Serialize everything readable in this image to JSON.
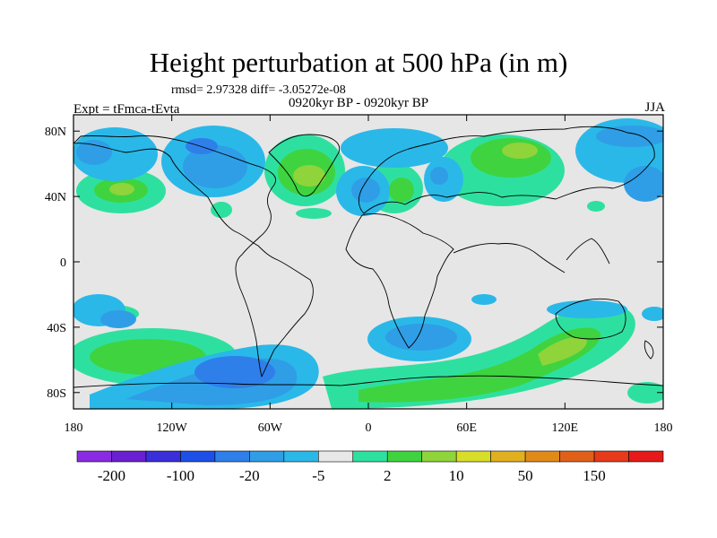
{
  "title": "Height perturbation at 500 hPa (in m)",
  "stats": "rmsd= 2.97328 diff= -3.05272e-08",
  "left_label": "Expt = tFmca-tEvta",
  "center_label": "0920kyr BP - 0920kyr BP",
  "right_label": "JJA",
  "lat_ticks": [
    "80N",
    "40N",
    "0",
    "40S",
    "80S"
  ],
  "lon_ticks": [
    "180",
    "120W",
    "60W",
    "0",
    "60E",
    "120E",
    "180"
  ],
  "colorbar": {
    "colors": [
      "#8a2be2",
      "#6a1fd0",
      "#3a2fd8",
      "#1e50e8",
      "#2f7fea",
      "#2f9ee6",
      "#2ab8e8",
      "#e8e8e8",
      "#2ee0a0",
      "#3fd33f",
      "#8fd43a",
      "#d8dd2a",
      "#e0b020",
      "#e08a1a",
      "#e0601a",
      "#e63a1a",
      "#e61a1a"
    ],
    "labels": [
      "-200",
      "-100",
      "-20",
      "-5",
      "2",
      "10",
      "50",
      "150"
    ]
  }
}
